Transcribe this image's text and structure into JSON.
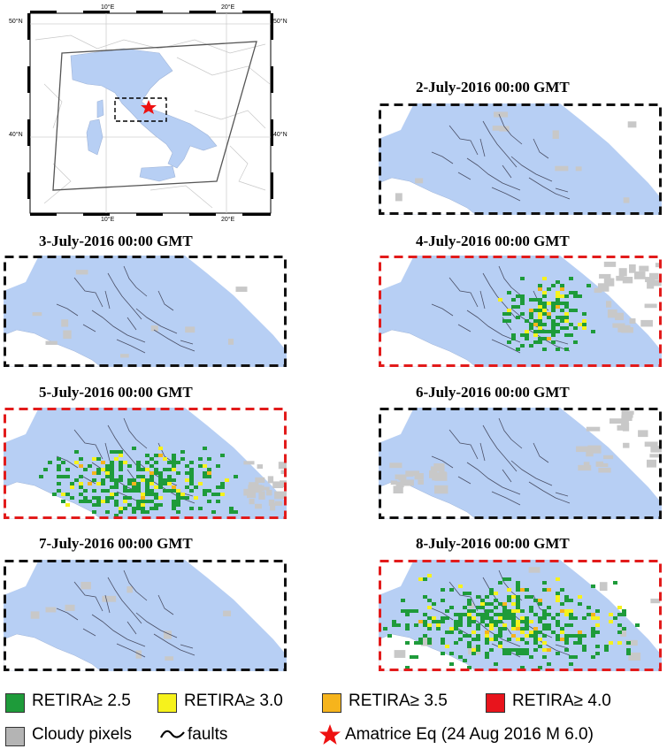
{
  "inset_map": {
    "top_ticks": [
      "10°E",
      "20°E"
    ],
    "bottom_ticks": [
      "10°E",
      "20°E"
    ],
    "left_ticks": [
      "50°N",
      "40°N"
    ],
    "right_ticks": [
      "50°N",
      "40°N"
    ]
  },
  "panels": [
    {
      "id": "jul2",
      "title": "2-July-2016   00:00 GMT",
      "anomaly": false,
      "level": "none"
    },
    {
      "id": "jul3",
      "title": "3-July-2016   00:00 GMT",
      "anomaly": false,
      "level": "none"
    },
    {
      "id": "jul4",
      "title": "4-July-2016   00:00 GMT",
      "anomaly": true,
      "level": "medium"
    },
    {
      "id": "jul5",
      "title": "5-July-2016   00:00 GMT",
      "anomaly": true,
      "level": "high"
    },
    {
      "id": "jul6",
      "title": "6-July-2016   00:00 GMT",
      "anomaly": false,
      "level": "none"
    },
    {
      "id": "jul7",
      "title": "7-July-2016   00:00 GMT",
      "anomaly": false,
      "level": "none"
    },
    {
      "id": "jul8",
      "title": "8-July-2016   00:00 GMT",
      "anomaly": true,
      "level": "high"
    }
  ],
  "legend": {
    "retira_25": "RETIRA≥ 2.5",
    "retira_30": "RETIRA≥ 3.0",
    "retira_35": "RETIRA≥ 3.5",
    "retira_40": "RETIRA≥ 4.0",
    "cloudy": "Cloudy pixels",
    "faults": "faults",
    "epicenter": "Amatrice Eq (24 Aug 2016 M 6.0)"
  },
  "colors": {
    "sea": "#ffffff",
    "land": "#b7cff4",
    "cloud": "#c8c8c8",
    "green": "#1e9b3a",
    "yellow": "#f6f21c",
    "orange": "#f6b41c",
    "red": "#e8141c",
    "anomaly_border": "#e21b1b",
    "normal_border": "#111111",
    "star": "#ee1111"
  }
}
